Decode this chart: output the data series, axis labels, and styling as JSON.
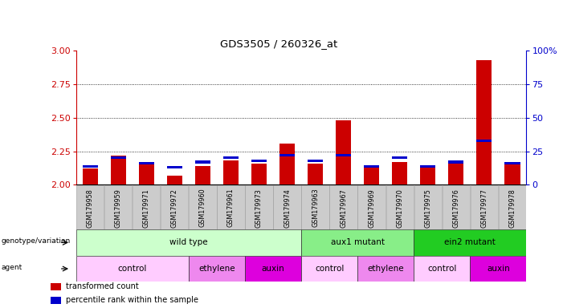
{
  "title": "GDS3505 / 260326_at",
  "samples": [
    "GSM179958",
    "GSM179959",
    "GSM179971",
    "GSM179972",
    "GSM179960",
    "GSM179961",
    "GSM179973",
    "GSM179974",
    "GSM179963",
    "GSM179967",
    "GSM179969",
    "GSM179970",
    "GSM179975",
    "GSM179976",
    "GSM179977",
    "GSM179978"
  ],
  "red_values": [
    2.12,
    2.22,
    2.15,
    2.07,
    2.14,
    2.18,
    2.16,
    2.31,
    2.16,
    2.48,
    2.14,
    2.17,
    2.14,
    2.17,
    2.93,
    2.15
  ],
  "blue_values": [
    14,
    20,
    16,
    13,
    17,
    20,
    18,
    22,
    18,
    22,
    14,
    20,
    14,
    17,
    33,
    16
  ],
  "ymin": 2.0,
  "ymax": 3.0,
  "yright_max": 100,
  "yticks_left": [
    2.0,
    2.25,
    2.5,
    2.75,
    3.0
  ],
  "yticks_right": [
    0,
    25,
    50,
    75,
    100
  ],
  "red_color": "#cc0000",
  "blue_color": "#0000cc",
  "genotype_groups": [
    {
      "label": "wild type",
      "start": 0,
      "end": 8,
      "color": "#ccffcc"
    },
    {
      "label": "aux1 mutant",
      "start": 8,
      "end": 12,
      "color": "#88ee88"
    },
    {
      "label": "ein2 mutant",
      "start": 12,
      "end": 16,
      "color": "#22cc22"
    }
  ],
  "agent_groups": [
    {
      "label": "control",
      "start": 0,
      "end": 4,
      "color": "#ffccff"
    },
    {
      "label": "ethylene",
      "start": 4,
      "end": 6,
      "color": "#ee88ee"
    },
    {
      "label": "auxin",
      "start": 6,
      "end": 8,
      "color": "#dd00dd"
    },
    {
      "label": "control",
      "start": 8,
      "end": 10,
      "color": "#ffccff"
    },
    {
      "label": "ethylene",
      "start": 10,
      "end": 12,
      "color": "#ee88ee"
    },
    {
      "label": "control",
      "start": 12,
      "end": 14,
      "color": "#ffccff"
    },
    {
      "label": "auxin",
      "start": 14,
      "end": 16,
      "color": "#dd00dd"
    }
  ],
  "bar_width": 0.55,
  "xtick_bg_color": "#cccccc",
  "xtick_edge_color": "#999999",
  "legend": [
    {
      "color": "#cc0000",
      "label": "transformed count"
    },
    {
      "color": "#0000cc",
      "label": "percentile rank within the sample"
    }
  ]
}
